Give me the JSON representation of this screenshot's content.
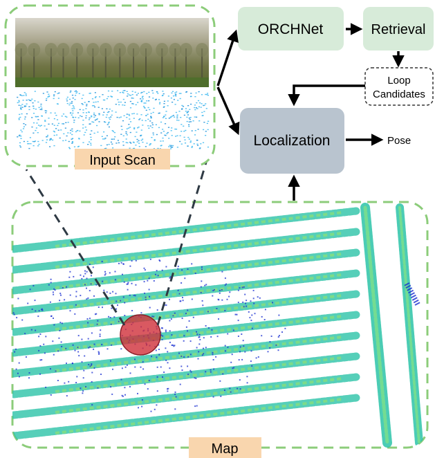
{
  "nodes": {
    "orchnet": "ORCHNet",
    "retrieval": "Retrieval",
    "loop_line1": "Loop",
    "loop_line2": "Candidates",
    "localization": "Localization",
    "pose": "Pose"
  },
  "panels": {
    "input_scan": "Input Scan",
    "map": "Map"
  },
  "colors": {
    "node_green": "#d7ebd9",
    "node_gray": "#b9c4cf",
    "dash_green": "#8ccc7a",
    "label_peach": "#f9d6ae",
    "marker_red": "#d0303a",
    "points_teal": "#2cc4c0",
    "points_cyan": "#3cb8f0",
    "points_blue": "#1a2fd0"
  }
}
